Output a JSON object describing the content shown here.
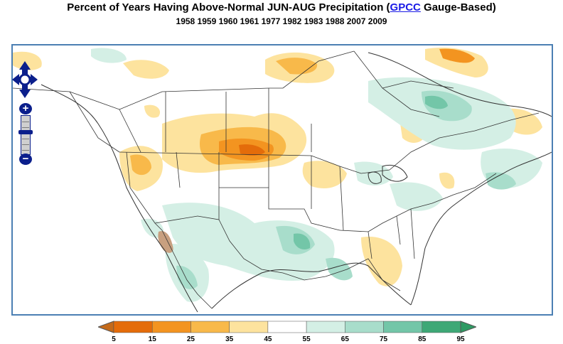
{
  "header": {
    "title_prefix": "Percent of Years Having Above-Normal JUN-AUG Precipitation (",
    "title_link": "GPCC",
    "title_suffix": " Gauge-Based)",
    "years": "1958 1959 1960 1961 1977 1982 1983 1988 2007 2009"
  },
  "controls": {
    "pan_icon": "pan-arrows-icon",
    "zoom_in": "+",
    "zoom_out": "−"
  },
  "legend": {
    "ticks": [
      "5",
      "15",
      "25",
      "35",
      "45",
      "55",
      "65",
      "75",
      "85",
      "95"
    ],
    "colors": [
      "#e46c0a",
      "#f39420",
      "#f8b94a",
      "#fde39e",
      "#ffffff",
      "#d4efe5",
      "#a8ddcb",
      "#73c6a8",
      "#3ea876"
    ],
    "below_color": "#c46a1a",
    "above_color": "#2e9a63"
  }
}
